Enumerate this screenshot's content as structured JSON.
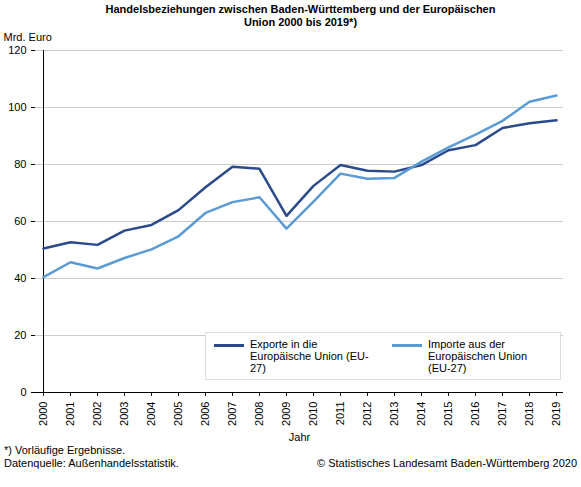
{
  "chart_data": {
    "type": "line",
    "title": "Handelsbeziehungen zwischen Baden-Württemberg und der Europäischen Union 2000 bis 2019*)",
    "y_label": "Mrd. Euro",
    "x_label": "Jahr",
    "categories": [
      "2000",
      "2001",
      "2002",
      "2003",
      "2004",
      "2005",
      "2006",
      "2007",
      "2008",
      "2009",
      "2010",
      "2011",
      "2012",
      "2013",
      "2014",
      "2015",
      "2016",
      "2017",
      "2018",
      "2019"
    ],
    "series": [
      {
        "name": "Exporte in die Europäische Union (EU-27)",
        "color": "#2b4a8b",
        "values": [
          50.5,
          52.7,
          51.8,
          56.8,
          58.8,
          64,
          72,
          79.2,
          78.5,
          62,
          72.5,
          79.8,
          77.8,
          77.5,
          79.8,
          85,
          86.8,
          92.8,
          94.5,
          95.5
        ]
      },
      {
        "name": "Importe aus der Europäischen Union (EU-27)",
        "color": "#5b9bd5",
        "values": [
          40.5,
          45.7,
          43.5,
          47.2,
          50.2,
          54.8,
          63,
          66.8,
          68.5,
          57.5,
          67,
          76.8,
          75,
          75.3,
          81,
          86,
          90.5,
          95.3,
          102,
          104.2
        ]
      }
    ],
    "ylim": [
      0,
      120
    ],
    "yticks": [
      0,
      20,
      40,
      60,
      80,
      100,
      120
    ],
    "grid": true,
    "legend": "lower right",
    "footnote": "*) Vorläufige Ergebnisse.",
    "source": "Datenquelle: Außenhandelsstatistik.",
    "copyright": "© Statistisches Landesamt Baden-Württemberg 2020"
  }
}
